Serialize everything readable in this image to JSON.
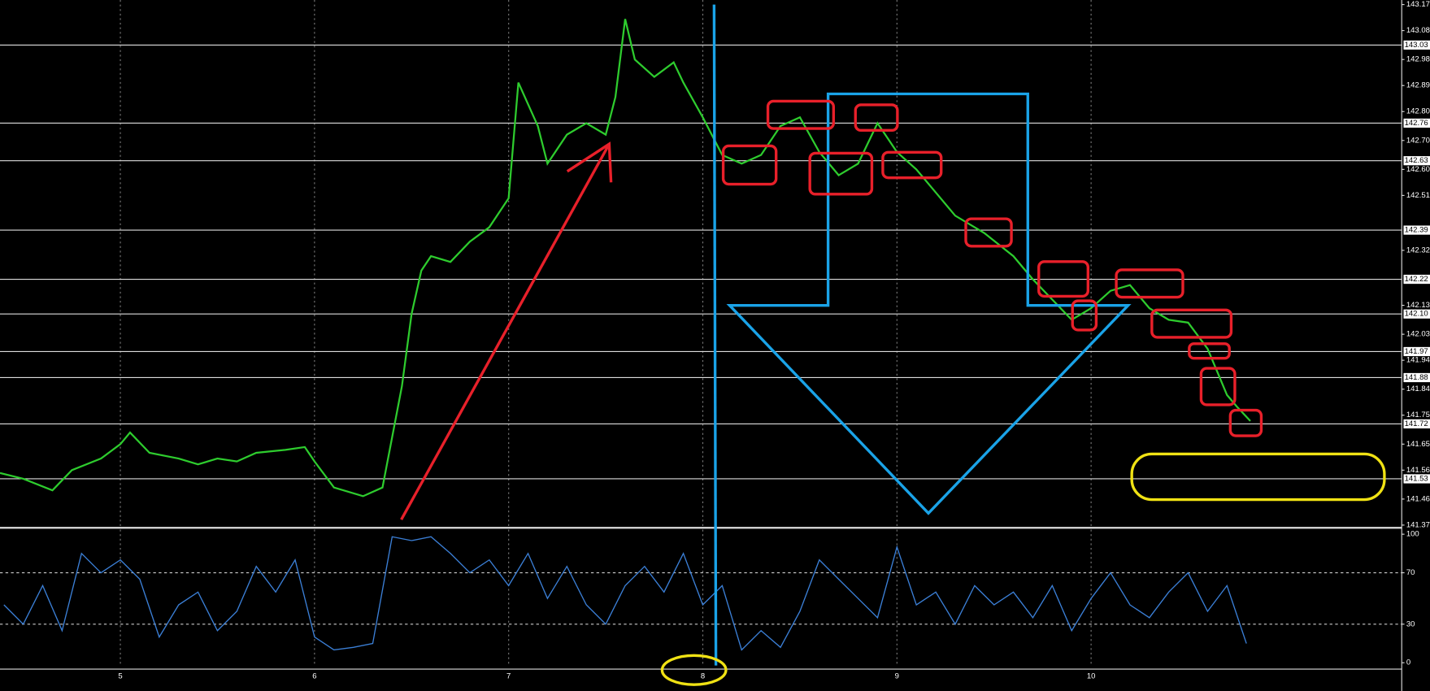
{
  "chart_data": [
    {
      "type": "line",
      "color": "#2ecc2e",
      "xlim": [
        4.38,
        11.6
      ],
      "xticks": [
        5,
        6,
        7,
        8,
        9,
        10
      ],
      "grid": true,
      "ylim": [
        141.37,
        143.17
      ],
      "yticks": [
        143.17,
        143.08,
        142.98,
        142.89,
        {
          "value": 142.8,
          "label": "142.80"
        },
        {
          "value": 142.7,
          "label": "142.70"
        },
        {
          "value": 142.6,
          "label": "142.60"
        },
        142.51,
        142.32,
        142.13,
        142.03,
        141.94,
        141.84,
        141.75,
        141.65,
        141.56,
        141.46,
        141.37
      ],
      "levels": [
        143.03,
        142.76,
        142.63,
        142.39,
        142.22,
        {
          "value": 142.1,
          "label": "142.10"
        },
        141.97,
        141.88,
        141.72,
        141.53
      ],
      "x": [
        4.38,
        4.5,
        4.65,
        4.75,
        4.9,
        5.0,
        5.05,
        5.15,
        5.3,
        5.4,
        5.5,
        5.6,
        5.7,
        5.85,
        5.95,
        6.0,
        6.1,
        6.25,
        6.35,
        6.45,
        6.5,
        6.55,
        6.6,
        6.7,
        6.8,
        6.9,
        7.0,
        7.05,
        7.15,
        7.2,
        7.3,
        7.4,
        7.5,
        7.55,
        7.6,
        7.65,
        7.75,
        7.85,
        7.9,
        8.0,
        8.1,
        8.2,
        8.3,
        8.4,
        8.5,
        8.6,
        8.7,
        8.8,
        8.9,
        9.0,
        9.1,
        9.2,
        9.3,
        9.45,
        9.6,
        9.7,
        9.8,
        9.9,
        10.0,
        10.1,
        10.2,
        10.3,
        10.4,
        10.5,
        10.6,
        10.65,
        10.7,
        10.75,
        10.82
      ],
      "values": [
        141.55,
        141.53,
        141.49,
        141.56,
        141.6,
        141.65,
        141.69,
        141.62,
        141.6,
        141.58,
        141.6,
        141.59,
        141.62,
        141.63,
        141.64,
        141.59,
        141.5,
        141.47,
        141.5,
        141.85,
        142.1,
        142.25,
        142.3,
        142.28,
        142.35,
        142.4,
        142.5,
        142.9,
        142.75,
        142.62,
        142.72,
        142.76,
        142.72,
        142.85,
        143.12,
        142.98,
        142.92,
        142.97,
        142.9,
        142.78,
        142.65,
        142.62,
        142.65,
        142.75,
        142.78,
        142.66,
        142.58,
        142.62,
        142.76,
        142.66,
        142.6,
        142.52,
        142.44,
        142.38,
        142.3,
        142.22,
        142.15,
        142.08,
        142.12,
        142.18,
        142.2,
        142.12,
        142.08,
        142.07,
        141.98,
        141.9,
        141.82,
        141.78,
        141.73
      ]
    },
    {
      "type": "line",
      "color": "#3b7fd6",
      "xlim": [
        4.38,
        11.6
      ],
      "ylim": [
        0,
        100
      ],
      "yticks": [
        100,
        70,
        30,
        0
      ],
      "levels": [
        70,
        30
      ],
      "x": [
        4.4,
        4.5,
        4.6,
        4.7,
        4.8,
        4.9,
        5.0,
        5.1,
        5.2,
        5.3,
        5.4,
        5.5,
        5.6,
        5.7,
        5.8,
        5.9,
        6.0,
        6.1,
        6.2,
        6.3,
        6.4,
        6.5,
        6.6,
        6.7,
        6.8,
        6.9,
        7.0,
        7.1,
        7.2,
        7.3,
        7.4,
        7.5,
        7.6,
        7.7,
        7.8,
        7.9,
        8.0,
        8.1,
        8.2,
        8.3,
        8.4,
        8.5,
        8.6,
        8.7,
        8.8,
        8.9,
        9.0,
        9.1,
        9.2,
        9.3,
        9.4,
        9.5,
        9.6,
        9.7,
        9.8,
        9.9,
        10.0,
        10.1,
        10.2,
        10.3,
        10.4,
        10.5,
        10.6,
        10.7,
        10.8
      ],
      "values": [
        45,
        30,
        60,
        25,
        85,
        70,
        80,
        65,
        20,
        45,
        55,
        25,
        40,
        75,
        55,
        80,
        20,
        10,
        12,
        15,
        98,
        95,
        98,
        85,
        70,
        80,
        60,
        85,
        50,
        75,
        45,
        30,
        60,
        75,
        55,
        85,
        45,
        60,
        10,
        25,
        12,
        40,
        80,
        65,
        50,
        35,
        90,
        45,
        55,
        30,
        60,
        45,
        55,
        35,
        60,
        25,
        50,
        70,
        45,
        35,
        55,
        70,
        40,
        60,
        15
      ]
    }
  ]
}
